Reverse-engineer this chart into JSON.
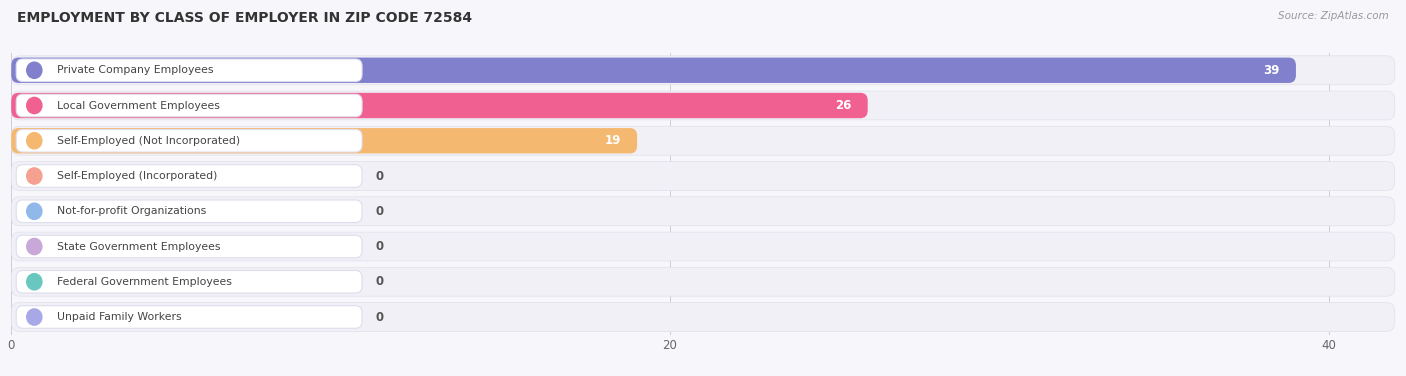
{
  "title": "EMPLOYMENT BY CLASS OF EMPLOYER IN ZIP CODE 72584",
  "source": "Source: ZipAtlas.com",
  "categories": [
    "Private Company Employees",
    "Local Government Employees",
    "Self-Employed (Not Incorporated)",
    "Self-Employed (Incorporated)",
    "Not-for-profit Organizations",
    "State Government Employees",
    "Federal Government Employees",
    "Unpaid Family Workers"
  ],
  "values": [
    39,
    26,
    19,
    0,
    0,
    0,
    0,
    0
  ],
  "bar_colors": [
    "#8080cc",
    "#f06090",
    "#f5b870",
    "#f5a090",
    "#90b8e8",
    "#c8a8d8",
    "#68c8c0",
    "#a8a8e8"
  ],
  "icon_colors": [
    "#8080cc",
    "#f06090",
    "#f5b870",
    "#f5a090",
    "#90b8e8",
    "#c8a8d8",
    "#68c8c0",
    "#a8a8e8"
  ],
  "row_bg_light": [
    "#ededf7",
    "#fce8f0",
    "#fef2e2",
    "#fce8e8",
    "#e8f0fc",
    "#f2e8f8",
    "#e2f5f3",
    "#e8e8f8"
  ],
  "row_container_color": "#f0f0f8",
  "xlim": [
    0,
    42
  ],
  "xticks": [
    0,
    20,
    40
  ],
  "fig_bg": "#f7f7fb",
  "title_fontsize": 10,
  "source_fontsize": 7.5,
  "value_label_color_inside": "#ffffff",
  "value_label_color_outside": "#555555"
}
